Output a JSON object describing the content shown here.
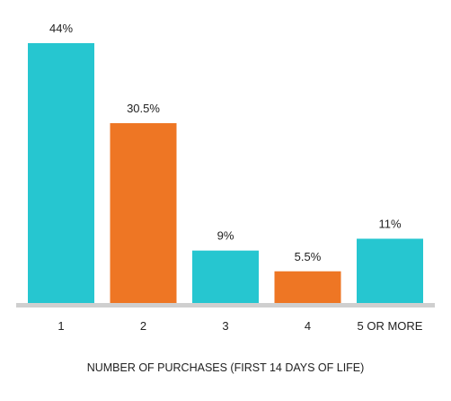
{
  "chart_data": {
    "type": "bar",
    "title": "",
    "xlabel": "NUMBER OF PURCHASES (FIRST 14 DAYS OF LIFE)",
    "ylabel": "",
    "categories": [
      "1",
      "2",
      "3",
      "4",
      "5 OR MORE"
    ],
    "values": [
      44,
      30.5,
      9,
      5.5,
      11
    ],
    "value_labels": [
      "44%",
      "30.5%",
      "9%",
      "5.5%",
      "11%"
    ],
    "bar_colors": [
      "#26C6D0",
      "#EE7624",
      "#26C6D0",
      "#EE7624",
      "#26C6D0"
    ],
    "ylim": [
      0,
      44
    ],
    "grid": false,
    "legend": "none"
  },
  "colors": {
    "teal": "#26C6D0",
    "orange": "#EE7624",
    "baseline": "#CFCFCF"
  }
}
